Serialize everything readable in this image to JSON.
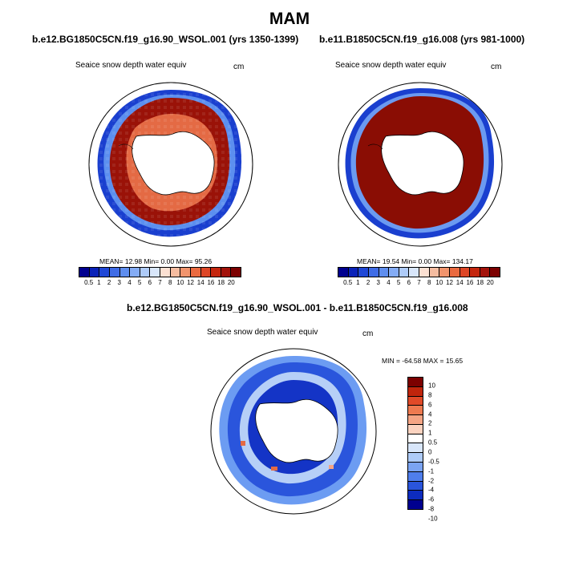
{
  "title": "MAM",
  "panels": [
    {
      "case_title": "b.e12.BG1850C5CN.f19_g16.90_WSOL.001 (yrs 1350-1399)",
      "var_label": "Seaice snow depth water equiv",
      "units": "cm",
      "stats": "MEAN=  12.98  Min=   0.00  Max=  95.26",
      "mean": 12.98,
      "min": 0.0,
      "max": 95.26
    },
    {
      "case_title": "b.e11.B1850C5CN.f19_g16.008 (yrs 981-1000)",
      "var_label": "Seaice snow depth water equiv",
      "units": "cm",
      "stats": "MEAN=  19.54  Min=   0.00  Max= 134.17",
      "mean": 19.54,
      "min": 0.0,
      "max": 134.17
    }
  ],
  "diff_panel": {
    "case_title": "b.e12.BG1850C5CN.f19_g16.90_WSOL.001 - b.e11.B1850C5CN.f19_g16.008",
    "var_label": "Seaice snow depth water equiv",
    "units": "cm",
    "stats": "MIN = -64.58 MAX =  15.65",
    "min": -64.58,
    "max": 15.65
  },
  "colorbar_abs": {
    "colors": [
      "#00008f",
      "#0a22b8",
      "#1f47d6",
      "#3f6ce6",
      "#5f8eef",
      "#84acf5",
      "#aecbf8",
      "#d8e6fa",
      "#fbe0d2",
      "#f5bca0",
      "#f1946d",
      "#ea6a40",
      "#dd4626",
      "#c4260e",
      "#a3120a",
      "#7c0000"
    ],
    "labels": [
      "0.5",
      "1",
      "2",
      "3",
      "4",
      "5",
      "6",
      "7",
      "8",
      "10",
      "12",
      "14",
      "16",
      "18",
      "20"
    ]
  },
  "colorbar_diff": {
    "colors": [
      "#7c0000",
      "#c0250c",
      "#e04a28",
      "#ee7a50",
      "#f5a585",
      "#fbd3c0",
      "#ffffff",
      "#d8e6fa",
      "#aecbf8",
      "#7ba4f3",
      "#4f7eec",
      "#2a55dc",
      "#0d2cbf",
      "#00008f"
    ],
    "labels": [
      "10",
      "8",
      "6",
      "4",
      "2",
      "1",
      "0.5",
      "0",
      "-0.5",
      "-1",
      "-2",
      "-4",
      "-6",
      "-8",
      "-10"
    ]
  }
}
